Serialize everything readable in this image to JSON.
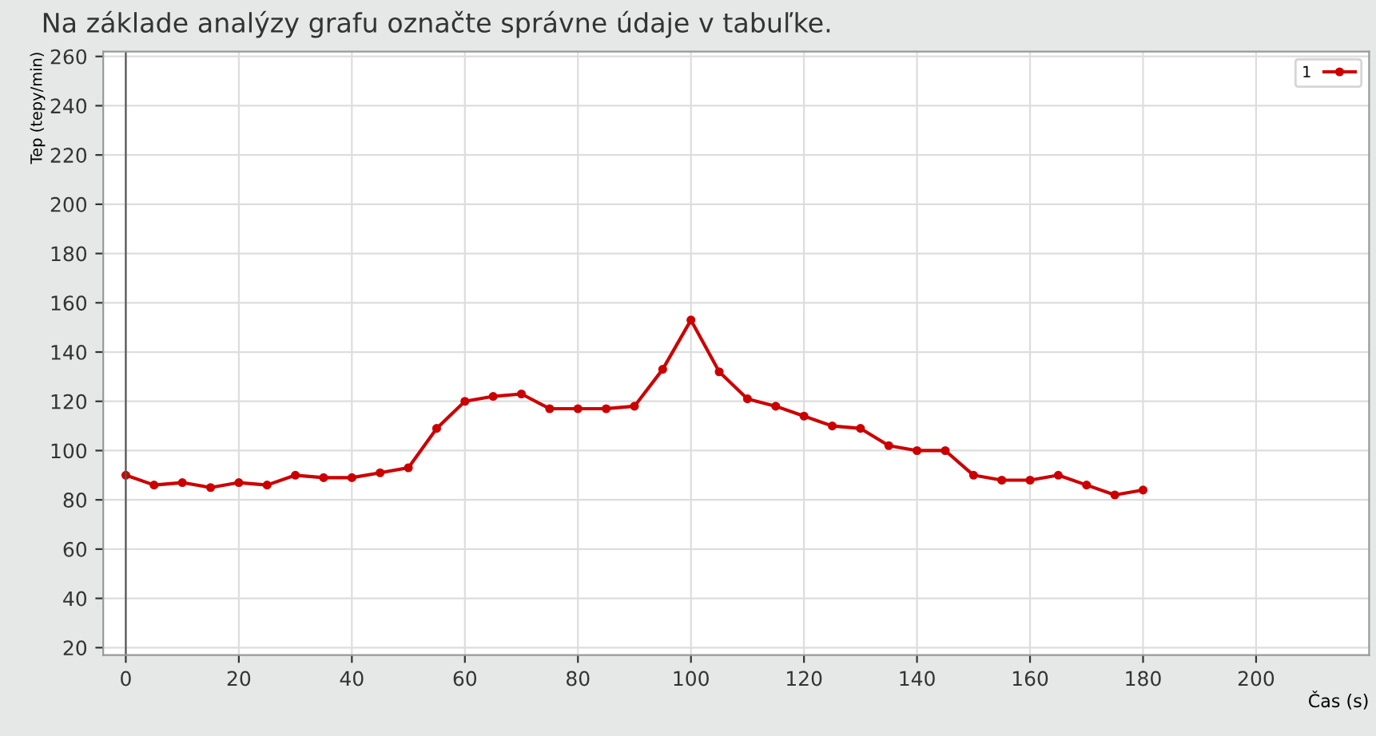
{
  "chart_data": {
    "type": "line",
    "title": "Na základe analýzy grafu označte správne údaje v tabuľke.",
    "xlabel": "Čas (s)",
    "ylabel": "Tep (tepy/min)",
    "x": [
      0,
      5,
      10,
      15,
      20,
      25,
      30,
      35,
      40,
      45,
      50,
      55,
      60,
      65,
      70,
      75,
      80,
      85,
      90,
      95,
      100,
      105,
      110,
      115,
      120,
      125,
      130,
      135,
      140,
      145,
      150,
      155,
      160,
      165,
      170,
      175,
      180
    ],
    "series": [
      {
        "name": "1",
        "color": "#cc0000",
        "values": [
          90,
          86,
          87,
          85,
          87,
          86,
          90,
          89,
          89,
          91,
          93,
          109,
          120,
          122,
          123,
          117,
          117,
          117,
          118,
          133,
          153,
          132,
          121,
          118,
          114,
          110,
          109,
          102,
          100,
          100,
          90,
          88,
          88,
          90,
          86,
          82,
          84
        ]
      }
    ],
    "xlim": [
      -4,
      220
    ],
    "ylim": [
      17,
      262
    ],
    "xticks": [
      0,
      20,
      40,
      60,
      80,
      100,
      120,
      140,
      160,
      180,
      200
    ],
    "yticks": [
      20,
      40,
      60,
      80,
      100,
      120,
      140,
      160,
      180,
      200,
      220,
      240,
      260
    ],
    "grid": true,
    "legend": "top right",
    "marker": "circle",
    "line_style": "solid"
  }
}
